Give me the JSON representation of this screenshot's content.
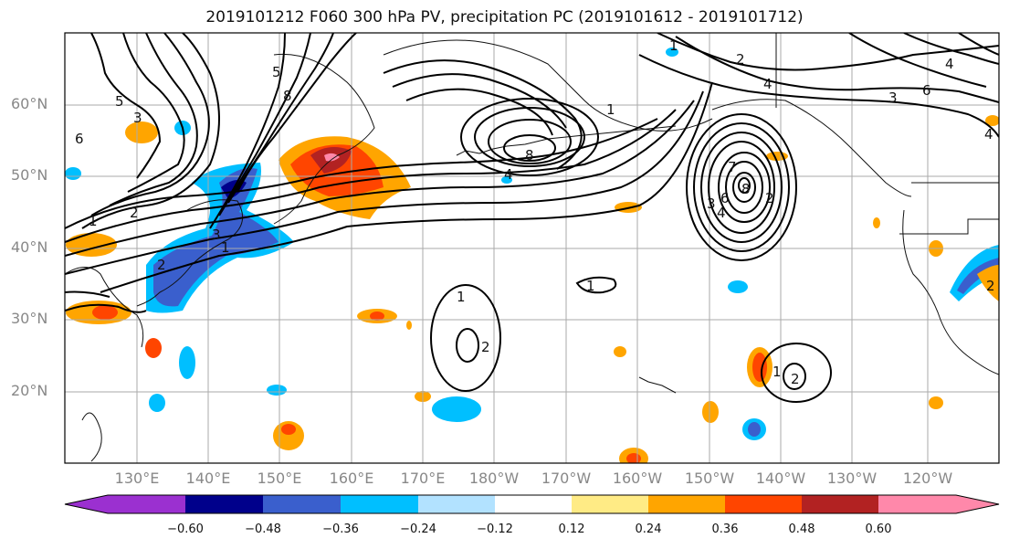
{
  "title": "2019101212 F060 300 hPa PV, precipitation PC (2019101612 - 2019101712)",
  "lat_labels": [
    "60°N",
    "50°N",
    "40°N",
    "30°N",
    "20°N"
  ],
  "lon_labels": [
    "130°E",
    "140°E",
    "150°E",
    "160°E",
    "170°E",
    "180°W",
    "170°W",
    "160°W",
    "150°W",
    "140°W",
    "130°W",
    "120°W"
  ],
  "colorbar": {
    "ticks": [
      "−0.60",
      "−0.48",
      "−0.36",
      "−0.24",
      "−0.12",
      "0.12",
      "0.24",
      "0.36",
      "0.48",
      "0.60"
    ],
    "colors": [
      "#9b30d0",
      "#00008b",
      "#3a5fcd",
      "#00bfff",
      "#b2e2ff",
      "#ffffff",
      "#ffeb85",
      "#ffa500",
      "#ff4500",
      "#b22222",
      "#ff88aa"
    ]
  },
  "pv_contour_labels": [
    "1",
    "2",
    "3",
    "4",
    "5",
    "6",
    "7",
    "8"
  ]
}
